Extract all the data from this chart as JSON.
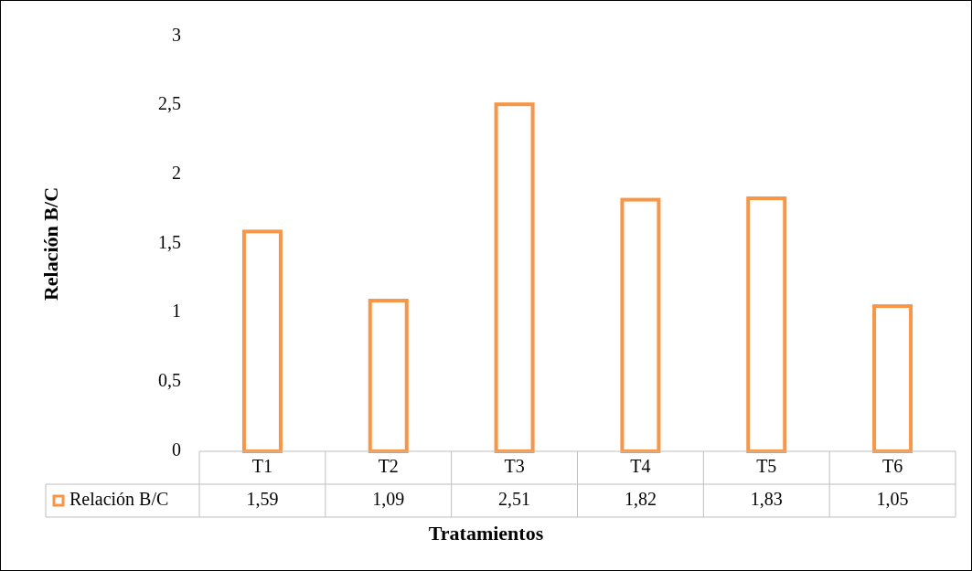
{
  "chart_data": {
    "type": "bar",
    "xlabel": "Tratamientos",
    "ylabel": "Relación B/C",
    "categories": [
      "T1",
      "T2",
      "T3",
      "T4",
      "T5",
      "T6"
    ],
    "series": [
      {
        "name": "Relación B/C",
        "color": "#f79646",
        "values": [
          1.59,
          1.09,
          2.51,
          1.82,
          1.83,
          1.05
        ],
        "value_labels": [
          "1,59",
          "1,09",
          "2,51",
          "1,82",
          "1,83",
          "1,05"
        ]
      }
    ],
    "ylim": [
      0,
      3
    ],
    "yticks": [
      0,
      {
        "value": 0.5,
        "label": "0,5"
      },
      1,
      {
        "value": 1.5,
        "label": "1,5"
      },
      2,
      {
        "value": 2.5,
        "label": "2,5"
      },
      3
    ],
    "grid": false,
    "legend": "bottom"
  }
}
